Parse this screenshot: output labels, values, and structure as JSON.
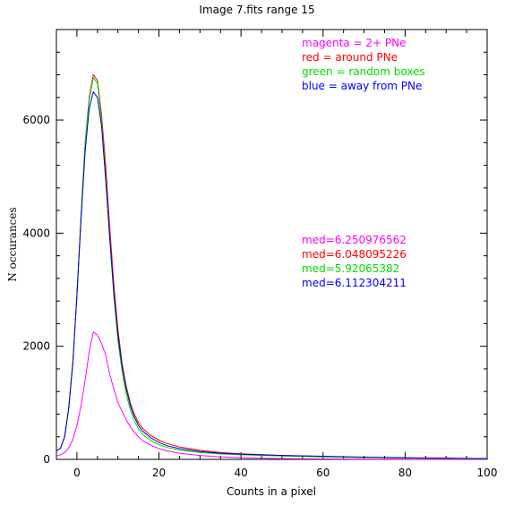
{
  "chart_data": {
    "type": "line",
    "title": "Image 7.fits   range 15",
    "xlabel": "Counts in a pixel",
    "ylabel": "N occurances",
    "xlim": [
      -5,
      100
    ],
    "ylim": [
      0,
      7600
    ],
    "x_ticks": [
      0,
      20,
      40,
      60,
      80,
      100
    ],
    "y_ticks": [
      0,
      2000,
      4000,
      6000
    ],
    "grid": false,
    "legend": [
      {
        "text": "magenta = 2+ PNe",
        "color": "#ff00ff"
      },
      {
        "text": "red = around PNe",
        "color": "#ff0000"
      },
      {
        "text": "green = random boxes",
        "color": "#00dd00"
      },
      {
        "text": "blue = away from PNe",
        "color": "#0000ff"
      }
    ],
    "medians": [
      {
        "text": "med=6.250976562",
        "color": "#ff00ff"
      },
      {
        "text": "med=6.048095226",
        "color": "#ff0000"
      },
      {
        "text": "med=5.92065382",
        "color": "#00dd00"
      },
      {
        "text": "med=6.112304211",
        "color": "#0000ff"
      }
    ],
    "series": [
      {
        "color": "#ff00ff",
        "x": [
          -5,
          -4,
          -3,
          -2,
          -1,
          0,
          1,
          2,
          3,
          4,
          5,
          6,
          7,
          8,
          9,
          10,
          11,
          12,
          13,
          14,
          15,
          16,
          18,
          20,
          22,
          25,
          30,
          35,
          40,
          50,
          60,
          70,
          80,
          90,
          100
        ],
        "y": [
          60,
          80,
          120,
          200,
          350,
          600,
          950,
          1400,
          1900,
          2250,
          2200,
          2050,
          1850,
          1500,
          1250,
          1000,
          850,
          700,
          580,
          480,
          400,
          330,
          250,
          190,
          150,
          110,
          70,
          45,
          30,
          15,
          8,
          5,
          3,
          2,
          1
        ]
      },
      {
        "color": "#ff0000",
        "x": [
          -5,
          -4,
          -3,
          -2,
          -1,
          0,
          1,
          2,
          3,
          4,
          5,
          6,
          7,
          8,
          9,
          10,
          11,
          12,
          13,
          14,
          15,
          16,
          18,
          20,
          22,
          25,
          30,
          35,
          40,
          50,
          60,
          70,
          80,
          90,
          100
        ],
        "y": [
          150,
          200,
          400,
          900,
          1700,
          2900,
          4300,
          5600,
          6400,
          6800,
          6700,
          6100,
          5200,
          4100,
          3100,
          2300,
          1700,
          1300,
          1000,
          800,
          650,
          550,
          420,
          340,
          280,
          220,
          160,
          120,
          100,
          70,
          50,
          35,
          25,
          18,
          12
        ]
      },
      {
        "color": "#00dd00",
        "x": [
          -5,
          -4,
          -3,
          -2,
          -1,
          0,
          1,
          2,
          3,
          4,
          5,
          6,
          7,
          8,
          9,
          10,
          11,
          12,
          13,
          14,
          15,
          16,
          18,
          20,
          22,
          25,
          30,
          35,
          40,
          50,
          60,
          70,
          80,
          90,
          100
        ],
        "y": [
          150,
          200,
          400,
          900,
          1700,
          2900,
          4300,
          5600,
          6350,
          6750,
          6650,
          6000,
          5000,
          3900,
          2900,
          2100,
          1550,
          1150,
          880,
          680,
          540,
          440,
          330,
          260,
          210,
          160,
          120,
          95,
          80,
          60,
          45,
          33,
          25,
          18,
          12
        ]
      },
      {
        "color": "#0000cc",
        "x": [
          -5,
          -4,
          -3,
          -2,
          -1,
          0,
          1,
          2,
          3,
          4,
          5,
          6,
          7,
          8,
          9,
          10,
          11,
          12,
          13,
          14,
          15,
          16,
          18,
          20,
          22,
          25,
          30,
          35,
          40,
          50,
          60,
          70,
          80,
          90,
          100
        ],
        "y": [
          150,
          200,
          400,
          900,
          1700,
          2900,
          4250,
          5450,
          6200,
          6500,
          6400,
          5900,
          4950,
          3900,
          2950,
          2200,
          1650,
          1250,
          950,
          750,
          600,
          500,
          380,
          300,
          240,
          190,
          140,
          110,
          90,
          70,
          55,
          40,
          30,
          22,
          15
        ]
      }
    ]
  }
}
